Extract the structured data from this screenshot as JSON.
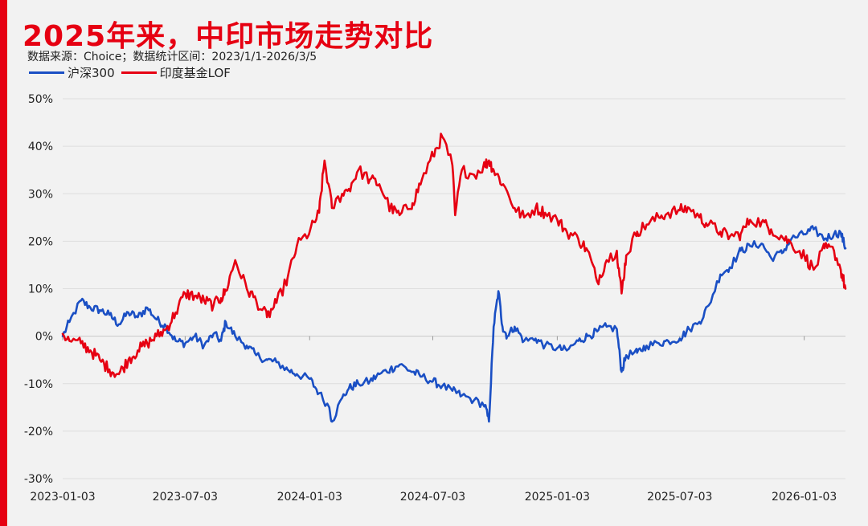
{
  "header": {
    "title": "2025年来，中印市场走势对比",
    "subtitle": "数据来源：Choice；数据统计区间：2023/1/1-2026/3/5"
  },
  "chart_data": {
    "type": "line",
    "ylim": [
      -30,
      50
    ],
    "yticks": [
      50,
      40,
      30,
      20,
      10,
      0,
      -10,
      -20,
      -30
    ],
    "ytick_labels": [
      "50%",
      "40%",
      "30%",
      "20%",
      "10%",
      "0%",
      "-10%",
      "-20%",
      "-30%"
    ],
    "xticks": [
      "2023-01-03",
      "2023-07-03",
      "2024-01-03",
      "2024-07-03",
      "2025-01-03",
      "2025-07-03",
      "2026-01-03"
    ],
    "xlim": [
      "2023-01-03",
      "2026-03-05"
    ],
    "grid": true,
    "legend_position": "top-left",
    "series": [
      {
        "name": "沪深300",
        "color": "#1a4fc4",
        "points": [
          [
            "2023-01-03",
            0
          ],
          [
            "2023-01-13",
            3
          ],
          [
            "2023-01-30",
            7.5
          ],
          [
            "2023-02-13",
            6
          ],
          [
            "2023-02-27",
            5.5
          ],
          [
            "2023-03-13",
            4.5
          ],
          [
            "2023-03-27",
            2.5
          ],
          [
            "2023-04-10",
            5
          ],
          [
            "2023-04-24",
            4
          ],
          [
            "2023-05-08",
            6
          ],
          [
            "2023-05-22",
            3.5
          ],
          [
            "2023-06-05",
            2
          ],
          [
            "2023-06-19",
            -1
          ],
          [
            "2023-07-03",
            -1.5
          ],
          [
            "2023-07-17",
            0
          ],
          [
            "2023-07-31",
            -2
          ],
          [
            "2023-08-14",
            0.5
          ],
          [
            "2023-08-25",
            -1
          ],
          [
            "2023-09-01",
            3
          ],
          [
            "2023-09-15",
            0
          ],
          [
            "2023-10-02",
            -2
          ],
          [
            "2023-10-16",
            -4
          ],
          [
            "2023-11-01",
            -5
          ],
          [
            "2023-11-15",
            -5.5
          ],
          [
            "2023-12-01",
            -7
          ],
          [
            "2023-12-15",
            -8
          ],
          [
            "2024-01-03",
            -9
          ],
          [
            "2024-01-17",
            -12
          ],
          [
            "2024-02-01",
            -15
          ],
          [
            "2024-02-05",
            -18
          ],
          [
            "2024-02-20",
            -13
          ],
          [
            "2024-03-01",
            -11
          ],
          [
            "2024-03-15",
            -10
          ],
          [
            "2024-04-01",
            -9.5
          ],
          [
            "2024-04-15",
            -8
          ],
          [
            "2024-05-01",
            -7
          ],
          [
            "2024-05-15",
            -6
          ],
          [
            "2024-06-03",
            -7.5
          ],
          [
            "2024-06-17",
            -8.5
          ],
          [
            "2024-07-03",
            -9.5
          ],
          [
            "2024-07-17",
            -10.5
          ],
          [
            "2024-08-01",
            -11.5
          ],
          [
            "2024-08-15",
            -12.5
          ],
          [
            "2024-09-02",
            -13.5
          ],
          [
            "2024-09-18",
            -14.5
          ],
          [
            "2024-09-24",
            -18
          ],
          [
            "2024-10-01",
            2
          ],
          [
            "2024-10-08",
            9.5
          ],
          [
            "2024-10-14",
            2
          ],
          [
            "2024-10-21",
            0
          ],
          [
            "2024-11-01",
            2
          ],
          [
            "2024-11-15",
            -1
          ],
          [
            "2024-12-02",
            -0.5
          ],
          [
            "2024-12-16",
            -2
          ],
          [
            "2025-01-03",
            -2.5
          ],
          [
            "2025-01-17",
            -3
          ],
          [
            "2025-02-03",
            -1
          ],
          [
            "2025-02-17",
            0
          ],
          [
            "2025-03-03",
            1
          ],
          [
            "2025-03-17",
            2
          ],
          [
            "2025-04-01",
            1.5
          ],
          [
            "2025-04-08",
            -7.5
          ],
          [
            "2025-04-15",
            -4
          ],
          [
            "2025-05-01",
            -3.5
          ],
          [
            "2025-05-15",
            -2
          ],
          [
            "2025-06-02",
            -1.5
          ],
          [
            "2025-06-16",
            -1
          ],
          [
            "2025-07-03",
            -0.5
          ],
          [
            "2025-07-17",
            1.5
          ],
          [
            "2025-08-01",
            3
          ],
          [
            "2025-08-15",
            6.5
          ],
          [
            "2025-09-01",
            13
          ],
          [
            "2025-09-15",
            14.5
          ],
          [
            "2025-10-01",
            18
          ],
          [
            "2025-10-15",
            19
          ],
          [
            "2025-11-01",
            19.5
          ],
          [
            "2025-11-15",
            16.5
          ],
          [
            "2025-12-01",
            17.5
          ],
          [
            "2025-12-15",
            20.5
          ],
          [
            "2026-01-03",
            21.5
          ],
          [
            "2026-01-17",
            22.5
          ],
          [
            "2026-02-02",
            20.5
          ],
          [
            "2026-02-16",
            21.5
          ],
          [
            "2026-02-26",
            21.8
          ],
          [
            "2026-03-05",
            18.5
          ]
        ]
      },
      {
        "name": "印度基金LOF",
        "color": "#e60012",
        "points": [
          [
            "2023-01-03",
            0.5
          ],
          [
            "2023-01-13",
            -1
          ],
          [
            "2023-01-30",
            -1.5
          ],
          [
            "2023-02-13",
            -3
          ],
          [
            "2023-02-27",
            -5
          ],
          [
            "2023-03-13",
            -7
          ],
          [
            "2023-03-27",
            -8
          ],
          [
            "2023-04-10",
            -5
          ],
          [
            "2023-04-24",
            -3
          ],
          [
            "2023-05-08",
            -1.5
          ],
          [
            "2023-05-22",
            0
          ],
          [
            "2023-06-05",
            1.5
          ],
          [
            "2023-06-19",
            5
          ],
          [
            "2023-07-03",
            9
          ],
          [
            "2023-07-17",
            8.5
          ],
          [
            "2023-07-31",
            7.5
          ],
          [
            "2023-08-14",
            6.5
          ],
          [
            "2023-08-25",
            8
          ],
          [
            "2023-09-01",
            9.5
          ],
          [
            "2023-09-15",
            16
          ],
          [
            "2023-10-02",
            10
          ],
          [
            "2023-10-16",
            7.5
          ],
          [
            "2023-11-01",
            4
          ],
          [
            "2023-11-15",
            7
          ],
          [
            "2023-12-01",
            12
          ],
          [
            "2023-12-15",
            19
          ],
          [
            "2024-01-03",
            22
          ],
          [
            "2024-01-17",
            26
          ],
          [
            "2024-01-25",
            37
          ],
          [
            "2024-02-05",
            27
          ],
          [
            "2024-02-20",
            30
          ],
          [
            "2024-03-01",
            31
          ],
          [
            "2024-03-15",
            35
          ],
          [
            "2024-04-01",
            33
          ],
          [
            "2024-04-15",
            32
          ],
          [
            "2024-05-01",
            27
          ],
          [
            "2024-05-15",
            25.5
          ],
          [
            "2024-06-03",
            28
          ],
          [
            "2024-06-17",
            33
          ],
          [
            "2024-07-03",
            38
          ],
          [
            "2024-07-17",
            42
          ],
          [
            "2024-08-01",
            36
          ],
          [
            "2024-08-05",
            25.5
          ],
          [
            "2024-08-15",
            35
          ],
          [
            "2024-09-02",
            34
          ],
          [
            "2024-09-18",
            36
          ],
          [
            "2024-09-24",
            37
          ],
          [
            "2024-10-01",
            35
          ],
          [
            "2024-10-15",
            32
          ],
          [
            "2024-11-01",
            27
          ],
          [
            "2024-11-15",
            25
          ],
          [
            "2024-12-02",
            27
          ],
          [
            "2024-12-16",
            26
          ],
          [
            "2025-01-03",
            24.5
          ],
          [
            "2025-01-17",
            22
          ],
          [
            "2025-02-03",
            20.5
          ],
          [
            "2025-02-17",
            18
          ],
          [
            "2025-03-03",
            11.5
          ],
          [
            "2025-03-17",
            16
          ],
          [
            "2025-04-01",
            18
          ],
          [
            "2025-04-08",
            9
          ],
          [
            "2025-04-15",
            17
          ],
          [
            "2025-05-01",
            22
          ],
          [
            "2025-05-15",
            23.5
          ],
          [
            "2025-06-02",
            25
          ],
          [
            "2025-06-16",
            26
          ],
          [
            "2025-07-03",
            26.5
          ],
          [
            "2025-07-17",
            27
          ],
          [
            "2025-08-01",
            25
          ],
          [
            "2025-08-15",
            23.5
          ],
          [
            "2025-09-01",
            22
          ],
          [
            "2025-09-15",
            21
          ],
          [
            "2025-10-01",
            21.5
          ],
          [
            "2025-10-15",
            24.5
          ],
          [
            "2025-11-01",
            24
          ],
          [
            "2025-11-15",
            22.5
          ],
          [
            "2025-12-01",
            21
          ],
          [
            "2025-12-15",
            19.5
          ],
          [
            "2026-01-03",
            17
          ],
          [
            "2026-01-17",
            14
          ],
          [
            "2026-02-02",
            18.5
          ],
          [
            "2026-02-16",
            18
          ],
          [
            "2026-02-26",
            14
          ],
          [
            "2026-03-05",
            10
          ]
        ]
      }
    ]
  }
}
